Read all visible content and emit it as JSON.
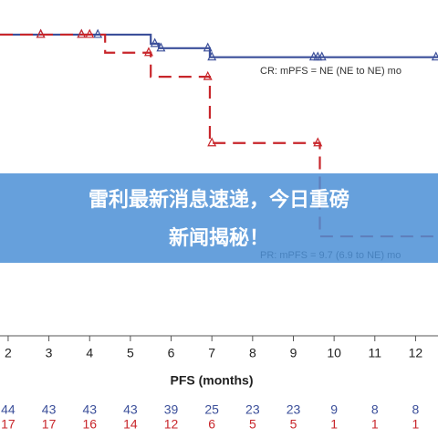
{
  "chart_data": {
    "type": "step",
    "xlim": [
      1.8,
      12.55
    ],
    "ylim": [
      0,
      111.5
    ],
    "xticks": [
      2,
      3,
      4,
      5,
      6,
      7,
      8,
      9,
      10,
      11,
      12
    ],
    "xlabel": "PFS (months)",
    "series": [
      {
        "color": "#3b4f9a",
        "dash": false,
        "x": [
          1.8,
          5.5,
          5.7,
          6.95
        ],
        "values": [
          100,
          97,
          95.5,
          92.5
        ],
        "end": 12.55,
        "censored": [
          2.8,
          3.8,
          4.2,
          5.6,
          5.75,
          6.9,
          7.0,
          9.5,
          9.6,
          9.7,
          12.5
        ],
        "annotation": "CR: mPFS = NE (NE to NE) mo",
        "at_risk": [
          44,
          43,
          43,
          43,
          39,
          25,
          23,
          23,
          9,
          8,
          8
        ]
      },
      {
        "color": "#c8262b",
        "dash": true,
        "x": [
          1.8,
          4.38,
          5.5,
          6.95,
          9.65
        ],
        "values": [
          100,
          94,
          86,
          64,
          33
        ],
        "end": 12.55,
        "censored": [
          2.8,
          3.8,
          4.0,
          5.45,
          6.9,
          7.0,
          9.6
        ],
        "annotation": "PR: mPFS = 9.7 (6.9 to NE) mo",
        "at_risk": [
          17,
          17,
          16,
          14,
          12,
          6,
          5,
          5,
          1,
          1,
          1
        ]
      }
    ]
  },
  "banner": {
    "lines": [
      "雷利最新消息速递，今日重磅",
      "新闻揭秘！"
    ]
  }
}
